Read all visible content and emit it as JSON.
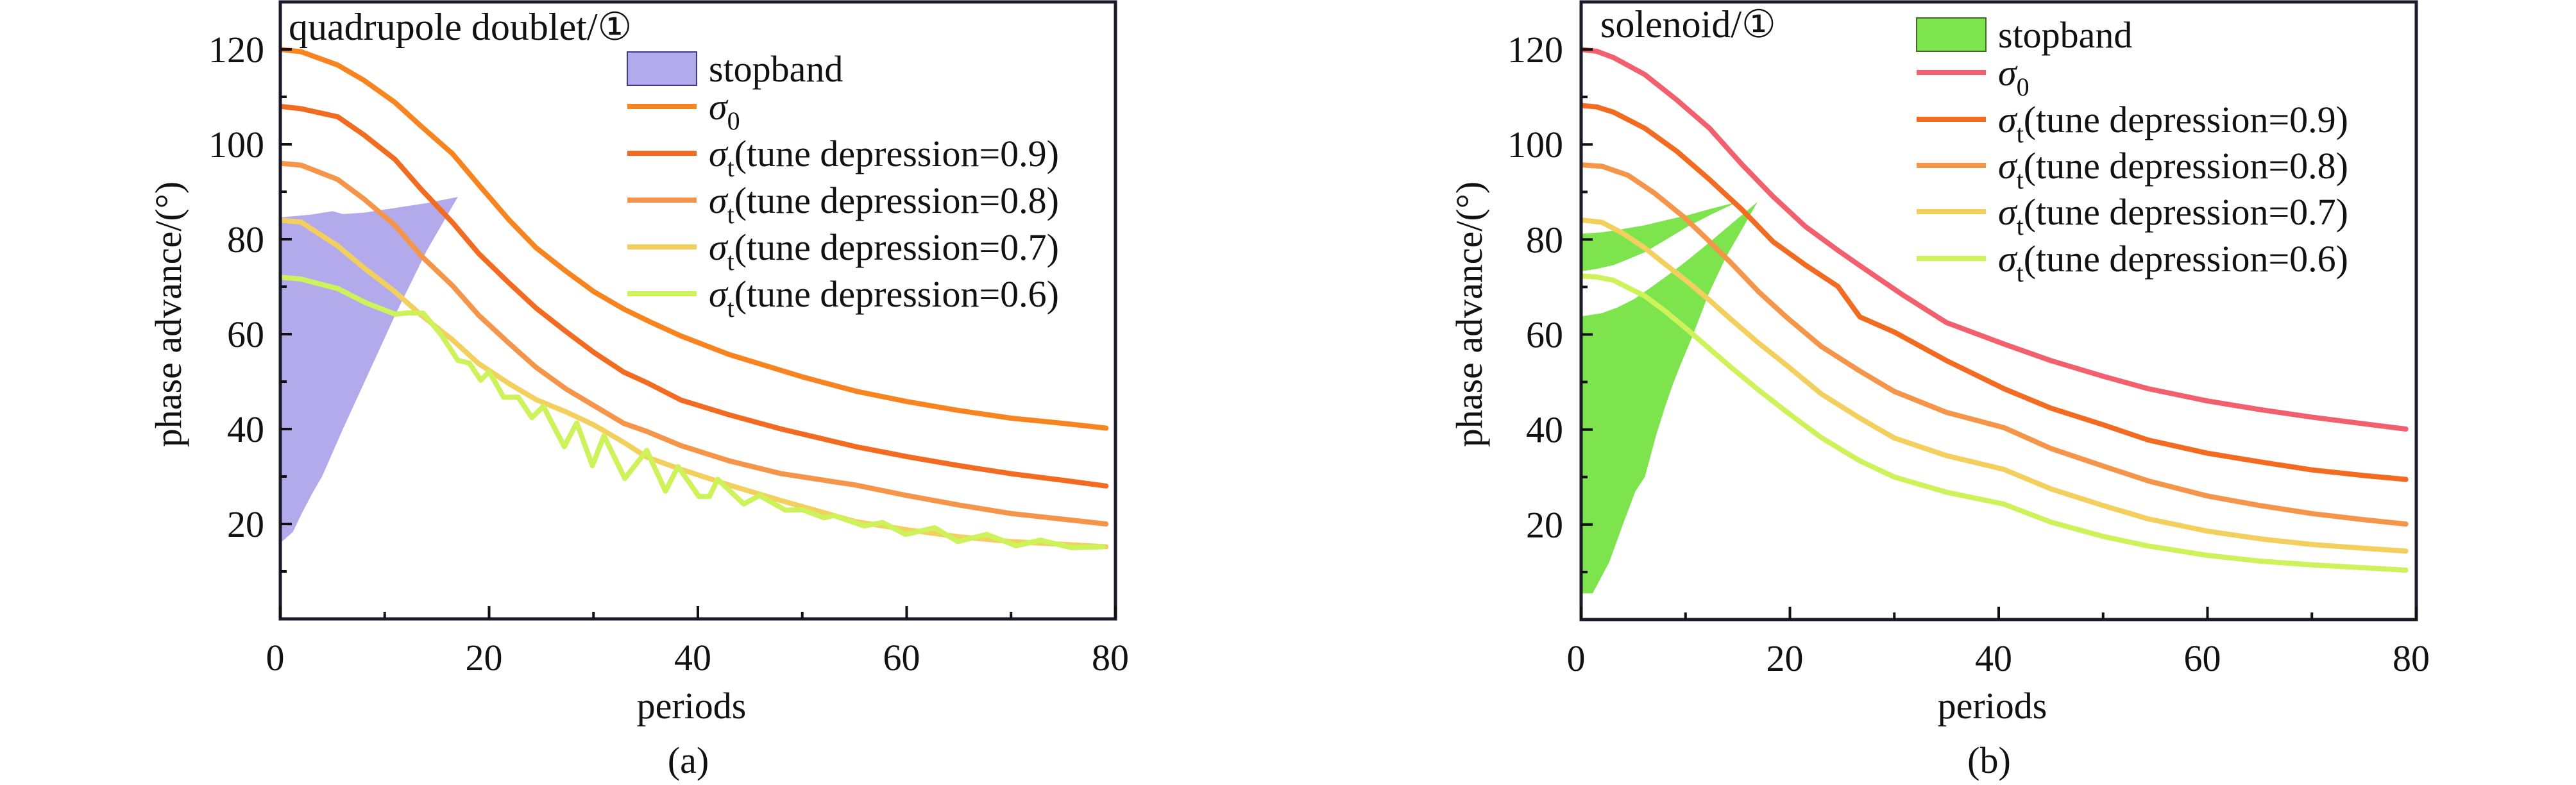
{
  "figure": {
    "panels": [
      "(a)",
      "(b)"
    ]
  },
  "chart_data": [
    {
      "type": "line",
      "panel_label": "(a)",
      "title": "quadrupole doublet/①",
      "xlabel": "periods",
      "ylabel": "phase advance/(°)",
      "xlim": [
        0,
        80
      ],
      "ylim": [
        0,
        130
      ],
      "x_ticks": [
        0,
        20,
        40,
        60,
        80
      ],
      "x_minor_ticks": [
        10,
        30,
        50,
        70
      ],
      "y_ticks": [
        20,
        40,
        60,
        80,
        100,
        120
      ],
      "y_minor_ticks": [
        10,
        30,
        50,
        70,
        90,
        110
      ],
      "grid": false,
      "legend_position": "top-right",
      "legend": [
        {
          "kind": "area",
          "label": "stopband",
          "key": "stopband"
        },
        {
          "kind": "line",
          "symbol": "σ",
          "sub": "0",
          "label": "",
          "key": "sigma0"
        },
        {
          "kind": "line",
          "symbol": "σ",
          "sub": "t",
          "label": "(tune depression=0.9)",
          "key": "t09"
        },
        {
          "kind": "line",
          "symbol": "σ",
          "sub": "t",
          "label": "(tune depression=0.8)",
          "key": "t08"
        },
        {
          "kind": "line",
          "symbol": "σ",
          "sub": "t",
          "label": "(tune depression=0.7)",
          "key": "t07"
        },
        {
          "kind": "line",
          "symbol": "σ",
          "sub": "t",
          "label": "(tune depression=0.6)",
          "key": "t06"
        }
      ],
      "colors": {
        "stopband": "#b3aaec",
        "stopband_edge": "#3a3a8a",
        "sigma0": "#f7841f",
        "t09": "#f26b21",
        "t08": "#f5954a",
        "t07": "#f3cf5e",
        "t06": "#cdf25a"
      },
      "stopbands": [
        {
          "name": "stopband",
          "polygon": [
            [
              0,
              84.6
            ],
            [
              3,
              85.2
            ],
            [
              5,
              85.9
            ],
            [
              6,
              85.3
            ],
            [
              8,
              85.6
            ],
            [
              11,
              86.6
            ],
            [
              14,
              87.6
            ],
            [
              17,
              88.9
            ],
            [
              14,
              77.5
            ],
            [
              11,
              64
            ],
            [
              8.5,
              52
            ],
            [
              6,
              40
            ],
            [
              4,
              30
            ],
            [
              3,
              26.2
            ],
            [
              2,
              22
            ],
            [
              1.2,
              18.3
            ],
            [
              0,
              16
            ]
          ]
        }
      ],
      "series": [
        {
          "name": "σ0",
          "key": "sigma0",
          "x": [
            0,
            2,
            5.5,
            8,
            11,
            13.5,
            16.5,
            19,
            21.9,
            24.5,
            27.4,
            30,
            32.9,
            35.5,
            38.4,
            43,
            50,
            55.1,
            60,
            65,
            70,
            75,
            79.1
          ],
          "y": [
            120,
            119.5,
            116.7,
            113.5,
            108.8,
            103.8,
            98,
            91.5,
            84.1,
            78.2,
            73.2,
            69,
            65.3,
            62.5,
            59.6,
            55.7,
            51,
            48,
            45.8,
            43.9,
            42.3,
            41.2,
            40.2
          ]
        },
        {
          "name": "σt(tune depression=0.9)",
          "key": "t09",
          "x": [
            0,
            2,
            5.5,
            8,
            11,
            13.5,
            16.5,
            19,
            21.9,
            24.5,
            27.4,
            30,
            32.9,
            35.1,
            38.4,
            43,
            48,
            55.1,
            60,
            65,
            70,
            75,
            79.1
          ],
          "y": [
            108,
            107.5,
            105.8,
            102,
            96.8,
            90.5,
            83.5,
            77,
            70.8,
            65.5,
            60.5,
            56.2,
            52,
            49.8,
            46.1,
            43,
            40,
            36.3,
            34.2,
            32.3,
            30.6,
            29.2,
            28
          ]
        },
        {
          "name": "σt(tune depression=0.8)",
          "key": "t08",
          "x": [
            0,
            2,
            5.5,
            8,
            11,
            13.5,
            16.5,
            19,
            21.9,
            24.5,
            27.4,
            30,
            32.9,
            35.1,
            38.4,
            43,
            48,
            55.1,
            60,
            65,
            70,
            75,
            79.1
          ],
          "y": [
            96,
            95.6,
            92.6,
            88.5,
            82.9,
            76.5,
            70.2,
            64,
            58.1,
            53,
            48.4,
            45,
            41.2,
            39.5,
            36.5,
            33.3,
            30.6,
            28.2,
            26,
            24,
            22.2,
            21,
            20
          ]
        },
        {
          "name": "σt(tune depression=0.7)",
          "key": "t07",
          "x": [
            0,
            2,
            5.5,
            8,
            11,
            13.5,
            16.5,
            19,
            21.9,
            24.5,
            27.4,
            30,
            32.9,
            35.1,
            38.4,
            43,
            48,
            55.1,
            60,
            65,
            70,
            75,
            79.1
          ],
          "y": [
            84,
            83.6,
            78.6,
            74,
            68.9,
            64,
            58.8,
            53.8,
            49.6,
            46.2,
            43.6,
            40.9,
            37.2,
            34.1,
            31.5,
            28.2,
            24.9,
            20.5,
            18.8,
            17.3,
            16.3,
            15.7,
            15.2
          ]
        },
        {
          "name": "σt(tune depression=0.6)",
          "key": "t06",
          "x": [
            0,
            2,
            5.5,
            8.2,
            11,
            12.3,
            13.7,
            15.4,
            17,
            18.1,
            19.2,
            20,
            21.4,
            22.8,
            24.1,
            25.2,
            27.2,
            28.4,
            29.9,
            31,
            33,
            35.1,
            36.9,
            38.1,
            40.1,
            41.1,
            41.9,
            44.4,
            45.9,
            48.4,
            50,
            52.1,
            53,
            55.9,
            57.7,
            59.9,
            62.7,
            64.9,
            67.7,
            70.5,
            72.8,
            75.8,
            78.8
          ],
          "y": [
            72,
            71.6,
            69.6,
            66.6,
            64.2,
            64.5,
            64.4,
            59.9,
            54.5,
            53.9,
            50.3,
            52.1,
            46.7,
            46.7,
            42.4,
            44.8,
            36.3,
            41.3,
            32.3,
            38.6,
            29.6,
            35.5,
            26.9,
            32.1,
            25.8,
            25.8,
            29.4,
            24.2,
            26,
            22.9,
            23,
            21.3,
            21.8,
            19.6,
            20.3,
            17.8,
            19.2,
            16.3,
            17.8,
            15.4,
            16.6,
            15,
            15.2
          ]
        }
      ]
    },
    {
      "type": "line",
      "panel_label": "(b)",
      "title": "solenoid/①",
      "xlabel": "periods",
      "ylabel": "phase advance/(°)",
      "xlim": [
        0,
        80
      ],
      "ylim": [
        0,
        130
      ],
      "x_ticks": [
        0,
        20,
        40,
        60,
        80
      ],
      "x_minor_ticks": [
        10,
        30,
        50,
        70
      ],
      "y_ticks": [
        20,
        40,
        60,
        80,
        100,
        120
      ],
      "y_minor_ticks": [
        10,
        30,
        50,
        70,
        90,
        110
      ],
      "grid": false,
      "legend_position": "top-right",
      "legend": [
        {
          "kind": "area",
          "label": "stopband",
          "key": "stopband"
        },
        {
          "kind": "line",
          "symbol": "σ",
          "sub": "0",
          "label": "",
          "key": "sigma0"
        },
        {
          "kind": "line",
          "symbol": "σ",
          "sub": "t",
          "label": "(tune depression=0.9)",
          "key": "t09"
        },
        {
          "kind": "line",
          "symbol": "σ",
          "sub": "t",
          "label": "(tune depression=0.8)",
          "key": "t08"
        },
        {
          "kind": "line",
          "symbol": "σ",
          "sub": "t",
          "label": "(tune depression=0.7)",
          "key": "t07"
        },
        {
          "kind": "line",
          "symbol": "σ",
          "sub": "t",
          "label": "(tune depression=0.6)",
          "key": "t06"
        }
      ],
      "colors": {
        "stopband": "#7de44e",
        "stopband_edge": "#3f6a2a",
        "sigma0": "#f2606e",
        "t09": "#f26b21",
        "t08": "#f5954a",
        "t07": "#f3cf5e",
        "t06": "#cdf25a"
      },
      "stopbands": [
        {
          "name": "stopband-upper",
          "polygon": [
            [
              0,
              81.2
            ],
            [
              2,
              81.5
            ],
            [
              4,
              82.2
            ],
            [
              6.1,
              83
            ],
            [
              8,
              84
            ],
            [
              10.2,
              85.1
            ],
            [
              12.5,
              86.5
            ],
            [
              15,
              87.9
            ],
            [
              12.5,
              85.3
            ],
            [
              10.2,
              82.7
            ],
            [
              8,
              79.8
            ],
            [
              6.1,
              77.3
            ],
            [
              4,
              75.4
            ],
            [
              3.1,
              74.6
            ],
            [
              1.5,
              73.8
            ],
            [
              0,
              73.3
            ]
          ]
        },
        {
          "name": "stopband-lower",
          "polygon": [
            [
              0,
              63.8
            ],
            [
              2,
              64.5
            ],
            [
              3.5,
              65.7
            ],
            [
              5.1,
              67.5
            ],
            [
              6.5,
              69.6
            ],
            [
              8.2,
              72.3
            ],
            [
              10,
              75.3
            ],
            [
              12.3,
              79.4
            ],
            [
              14.5,
              83.5
            ],
            [
              16.9,
              87.9
            ],
            [
              15.5,
              82.5
            ],
            [
              13.9,
              76.4
            ],
            [
              12.2,
              68.5
            ],
            [
              10.7,
              59.8
            ],
            [
              9.5,
              53.5
            ],
            [
              8.8,
              49.6
            ],
            [
              8,
              44.5
            ],
            [
              7.2,
              38.9
            ],
            [
              6.6,
              34
            ],
            [
              6.1,
              30
            ],
            [
              5.2,
              27
            ],
            [
              4,
              20
            ],
            [
              2.7,
              12.1
            ],
            [
              1.1,
              5.5
            ],
            [
              0,
              5.5
            ]
          ]
        }
      ],
      "series": [
        {
          "name": "σ0",
          "key": "sigma0",
          "x": [
            0,
            1.5,
            3.1,
            6.1,
            9.2,
            12.3,
            15.4,
            18.4,
            21.5,
            24.6,
            26.7,
            30.7,
            35,
            40.5,
            45,
            50,
            54.3,
            60,
            65,
            70,
            75,
            79
          ],
          "y": [
            120,
            119.6,
            118.3,
            114.7,
            109.3,
            103.4,
            95.8,
            89,
            82.7,
            77.7,
            74.5,
            68.5,
            62.5,
            58,
            54.5,
            51.2,
            48.6,
            46,
            44.2,
            42.6,
            41.2,
            40.1
          ]
        },
        {
          "name": "σt(tune depression=0.9)",
          "key": "t09",
          "x": [
            0,
            1.5,
            3.1,
            6.1,
            9.2,
            12.3,
            15.4,
            18.4,
            21.5,
            24.6,
            26.7,
            30,
            35,
            40.5,
            45,
            50,
            54.3,
            60,
            65,
            70,
            75,
            79
          ],
          "y": [
            108.2,
            107.9,
            106.8,
            103.4,
            98.5,
            92.6,
            86.3,
            79.5,
            74.6,
            70.1,
            63.7,
            60.5,
            54.5,
            48.6,
            44.5,
            41,
            37.8,
            35,
            33.2,
            31.5,
            30.3,
            29.5
          ]
        },
        {
          "name": "σt(tune depression=0.8)",
          "key": "t08",
          "x": [
            0,
            2,
            4.5,
            7,
            9.8,
            12,
            14.3,
            17,
            19.7,
            23,
            26.7,
            30,
            35,
            40.5,
            45,
            50,
            54.3,
            60,
            65,
            70,
            75,
            79
          ],
          "y": [
            95.7,
            95.4,
            93.5,
            89.8,
            84.8,
            80.2,
            75.2,
            69,
            63.6,
            57.5,
            52.3,
            48,
            43.6,
            40.4,
            36,
            32.3,
            29.2,
            26,
            24,
            22.3,
            21,
            20.1
          ]
        },
        {
          "name": "σt(tune depression=0.7)",
          "key": "t07",
          "x": [
            0,
            2,
            4,
            6.1,
            8,
            10.2,
            12.3,
            14.3,
            17,
            19.7,
            23,
            26.7,
            30,
            35,
            40.5,
            45,
            50,
            54.3,
            60,
            65,
            70,
            75,
            79
          ],
          "y": [
            84.1,
            83.6,
            81.3,
            78.2,
            74.9,
            71.1,
            67.2,
            63.3,
            58.2,
            53.5,
            47.5,
            42.4,
            38.2,
            34.5,
            31.6,
            27.5,
            24,
            21.2,
            18.6,
            17,
            15.8,
            15,
            14.4
          ]
        },
        {
          "name": "σt(tune depression=0.6)",
          "key": "t06",
          "x": [
            0,
            1.5,
            3.1,
            6.1,
            8,
            10.2,
            12.3,
            14.3,
            17,
            19.7,
            23,
            26.7,
            30,
            35,
            40.5,
            45,
            50,
            54.3,
            60,
            65,
            70,
            75,
            79
          ],
          "y": [
            72.3,
            72.1,
            71.4,
            68.1,
            65,
            61,
            57,
            53.2,
            48.3,
            43.7,
            38.3,
            33.4,
            30,
            26.8,
            24.3,
            20.5,
            17.5,
            15.5,
            13.5,
            12.3,
            11.5,
            10.9,
            10.4
          ]
        }
      ]
    }
  ]
}
